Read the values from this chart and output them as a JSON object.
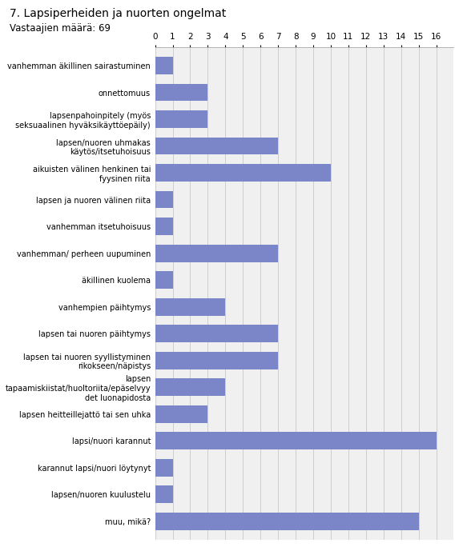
{
  "title": "7. Lapsiperheiden ja nuorten ongelmat",
  "subtitle": "Vastaajien määrä: 69",
  "bar_color": "#7b86c8",
  "categories": [
    "vanhemman äkillinen sairastuminen",
    "onnettomuus",
    "lapsenpahoinpitely (myös\nseksuaalinen hyväksikäyttöepäily)",
    "lapsen/nuoren uhmakas\nkäytös/itsetuhoisuus",
    "aikuisten välinen henkinen tai\nfyysinen riita",
    "lapsen ja nuoren välinen riita",
    "vanhemman itsetuhoisuus",
    "vanhemman/ perheen uupuminen",
    "äkillinen kuolema",
    "vanhempien päihtymys",
    "lapsen tai nuoren päihtymys",
    "lapsen tai nuoren syyllistyminen\nrikokseen/näpistys",
    "lapsen\ntapaamiskiistat/huoltoriita/epäselvyy\ndet luonapidosta",
    "lapsen heitteillejattö tai sen uhka",
    "lapsi/nuori karannut",
    "karannut lapsi/nuori löytynyt",
    "lapsen/nuoren kuulustelu",
    "muu, mikä?"
  ],
  "values": [
    1,
    3,
    3,
    7,
    10,
    1,
    1,
    7,
    1,
    4,
    7,
    7,
    4,
    3,
    16,
    1,
    1,
    15
  ],
  "xlim": [
    0,
    17
  ],
  "xticks": [
    0,
    1,
    2,
    3,
    4,
    5,
    6,
    7,
    8,
    9,
    10,
    11,
    12,
    13,
    14,
    15,
    16
  ],
  "figsize": [
    5.78,
    6.89
  ],
  "dpi": 100,
  "bg_color": "#eaeaea",
  "plot_bg_color": "#f0f0f0"
}
